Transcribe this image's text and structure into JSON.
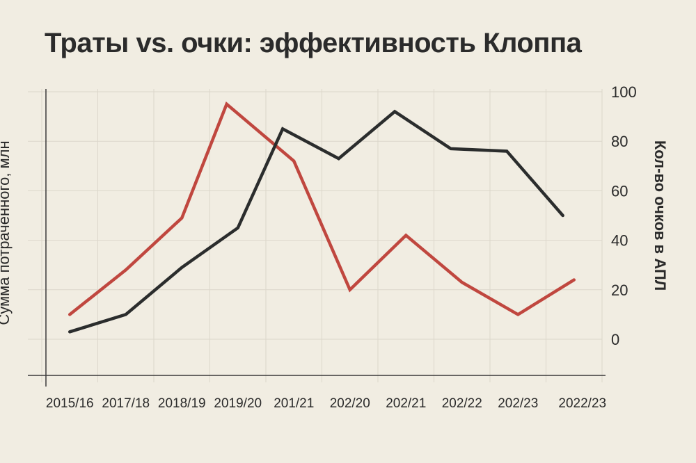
{
  "chart_data": {
    "type": "line",
    "title": "Траты vs. очки: эффективность Клоппа",
    "ylabel_left": "Сумма потраченного, млн",
    "ylabel_right": "Кол-во очков в АПЛ",
    "categories": [
      "2015/16",
      "2017/18",
      "2018/19",
      "2019/20",
      "201/21",
      "202/20",
      "202/21",
      "202/22",
      "202/23",
      "2022/23"
    ],
    "y_right_ticks": [
      "100",
      "80",
      "60",
      "40",
      "20",
      "0"
    ],
    "y_range": [
      0,
      100
    ],
    "grid": true,
    "series": [
      {
        "color": "#c0473f",
        "x": [
          0.5,
          1.5,
          2.5,
          3.3,
          4.5,
          5.5,
          6.5,
          7.5,
          8.5,
          9.5
        ],
        "values": [
          10,
          28,
          49,
          95,
          72,
          20,
          42,
          23,
          10,
          24
        ]
      },
      {
        "color": "#2b2d2d",
        "x": [
          0.5,
          1.5,
          2.5,
          3.5,
          4.3,
          5.3,
          6.3,
          7.3,
          8.3,
          9.3
        ],
        "values": [
          3,
          10,
          29,
          45,
          85,
          73,
          92,
          77,
          76,
          50
        ]
      }
    ]
  }
}
